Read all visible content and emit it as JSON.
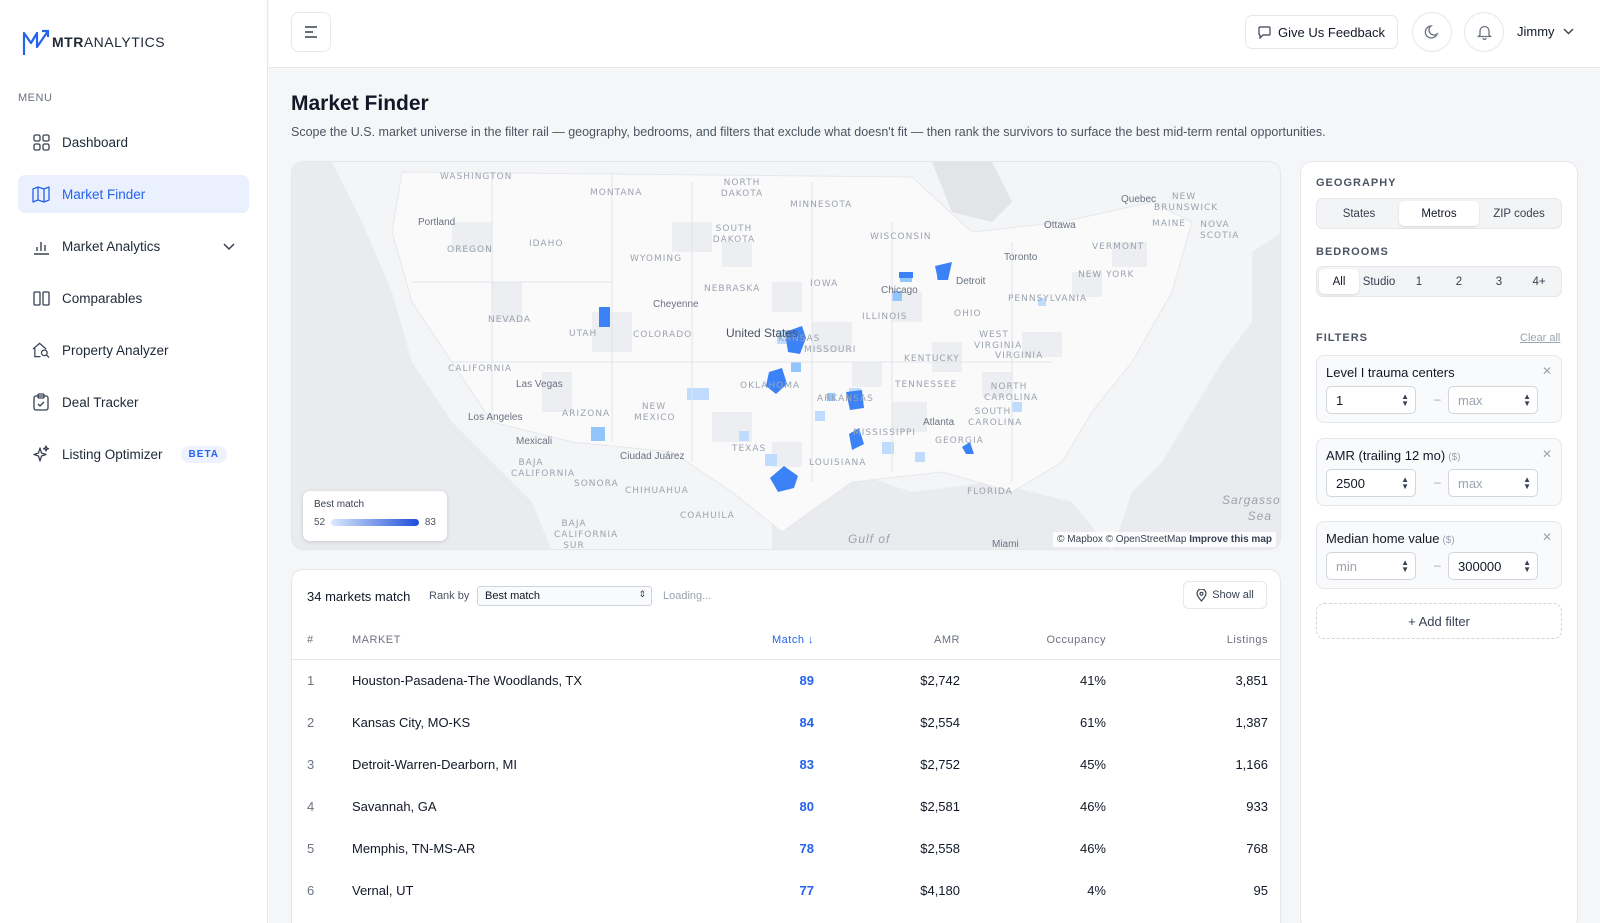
{
  "app": {
    "logo_bold": "MTR",
    "logo_light": "ANALYTICS"
  },
  "sidebar": {
    "menu_label": "MENU",
    "items": [
      {
        "label": "Dashboard",
        "icon": "grid-icon",
        "active": false
      },
      {
        "label": "Market Finder",
        "icon": "map-icon",
        "active": true
      },
      {
        "label": "Market Analytics",
        "icon": "bar-chart-icon",
        "active": false,
        "expandable": true
      },
      {
        "label": "Comparables",
        "icon": "columns-icon",
        "active": false
      },
      {
        "label": "Property Analyzer",
        "icon": "house-search-icon",
        "active": false
      },
      {
        "label": "Deal Tracker",
        "icon": "clipboard-icon",
        "active": false
      },
      {
        "label": "Listing Optimizer",
        "icon": "sparkles-icon",
        "active": false,
        "badge": "BETA"
      }
    ]
  },
  "header": {
    "feedback_label": "Give Us Feedback",
    "user_name": "Jimmy"
  },
  "page": {
    "title": "Market Finder",
    "description": "Scope the U.S. market universe in the filter rail — geography, bedrooms, and filters that exclude what doesn't fit — then rank the survivors to surface the best mid-term rental opportunities."
  },
  "map": {
    "legend_title": "Best match",
    "legend_min": "52",
    "legend_max": "83",
    "attribution": "© Mapbox © OpenStreetMap",
    "improve_link": "Improve this map",
    "state_labels": [
      "WASHINGTON",
      "MONTANA",
      "NORTH DAKOTA",
      "SOUTH DAKOTA",
      "OREGON",
      "IDAHO",
      "WYOMING",
      "NEBRASKA",
      "NEVADA",
      "UTAH",
      "COLORADO",
      "CALIFORNIA",
      "ARIZONA",
      "NEW MEXICO",
      "TEXAS",
      "OKLAHOMA",
      "KANSAS",
      "MISSOURI",
      "IOWA",
      "ILLINOIS",
      "WISCONSIN",
      "MINNESOTA",
      "OHIO",
      "KENTUCKY",
      "TENNESSEE",
      "ARKANSAS",
      "LOUISIANA",
      "MISSISSIPPI",
      "GEORGIA",
      "FLORIDA",
      "WEST VIRGINIA",
      "VIRGINIA",
      "NORTH CAROLINA",
      "SOUTH CAROLINA",
      "PENNSYLVANIA",
      "NEW YORK",
      "MAINE",
      "VERMONT",
      "NEW BRUNSWICK",
      "NOVA SCOTIA",
      "BAJA CALIFORNIA",
      "SONORA",
      "CHIHUAHUA",
      "COAHUILA",
      "BAJA CALIFORNIA SUR"
    ],
    "city_labels": [
      "Portland",
      "Cheyenne",
      "Las Vegas",
      "Los Angeles",
      "Mexicali",
      "Ciudad Juárez",
      "Chicago",
      "Detroit",
      "Toronto",
      "Ottawa",
      "Quebec",
      "Atlanta",
      "Miami"
    ],
    "big_labels": [
      "United States",
      "Gulf of",
      "Sargasso Sea"
    ]
  },
  "results": {
    "count_label": "34 markets match",
    "rank_label": "Rank by",
    "rank_value": "Best match",
    "loading_label": "Loading...",
    "show_all_label": "Show all",
    "columns": [
      "#",
      "MARKET",
      "Match ↓",
      "AMR",
      "Occupancy",
      "Listings"
    ],
    "rows": [
      {
        "rank": "1",
        "market": "Houston-Pasadena-The Woodlands, TX",
        "match": "89",
        "amr": "$2,742",
        "occupancy": "41%",
        "listings": "3,851"
      },
      {
        "rank": "2",
        "market": "Kansas City, MO-KS",
        "match": "84",
        "amr": "$2,554",
        "occupancy": "61%",
        "listings": "1,387"
      },
      {
        "rank": "3",
        "market": "Detroit-Warren-Dearborn, MI",
        "match": "83",
        "amr": "$2,752",
        "occupancy": "45%",
        "listings": "1,166"
      },
      {
        "rank": "4",
        "market": "Savannah, GA",
        "match": "80",
        "amr": "$2,581",
        "occupancy": "46%",
        "listings": "933"
      },
      {
        "rank": "5",
        "market": "Memphis, TN-MS-AR",
        "match": "78",
        "amr": "$2,558",
        "occupancy": "46%",
        "listings": "768"
      },
      {
        "rank": "6",
        "market": "Vernal, UT",
        "match": "77",
        "amr": "$4,180",
        "occupancy": "4%",
        "listings": "95"
      }
    ]
  },
  "filters": {
    "geography_label": "GEOGRAPHY",
    "geography_options": [
      "States",
      "Metros",
      "ZIP codes"
    ],
    "geography_selected": "Metros",
    "bedrooms_label": "BEDROOMS",
    "bedroom_options": [
      "All",
      "Studio",
      "1",
      "2",
      "3",
      "4+"
    ],
    "bedrooms_selected": "All",
    "filters_label": "FILTERS",
    "clear_all_label": "Clear all",
    "cards": [
      {
        "name": "Level I trauma centers",
        "unit": "",
        "min_value": "1",
        "min_placeholder": "",
        "max_value": "",
        "max_placeholder": "max"
      },
      {
        "name": "AMR (trailing 12 mo)",
        "unit": "($)",
        "min_value": "2500",
        "min_placeholder": "",
        "max_value": "",
        "max_placeholder": "max"
      },
      {
        "name": "Median home value",
        "unit": "($)",
        "min_value": "",
        "min_placeholder": "min",
        "max_value": "300000",
        "max_placeholder": ""
      }
    ],
    "add_filter_label": "+ Add filter"
  },
  "colors": {
    "accent": "#2563eb",
    "active_nav_bg": "#eaf0fe",
    "match_high": "#1d4ed8",
    "match_low": "#dbeafe"
  }
}
